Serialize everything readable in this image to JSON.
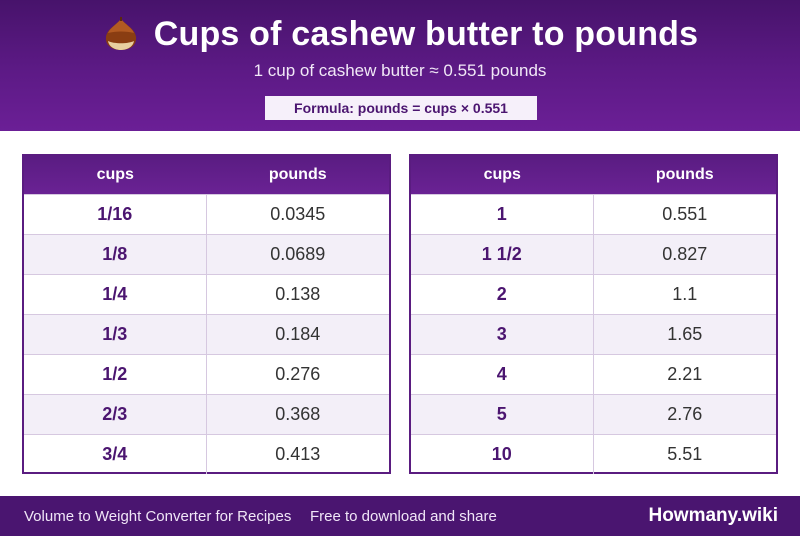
{
  "header": {
    "title": "Cups of cashew butter to pounds",
    "title_icon": "chestnut-icon",
    "subtitle": "1 cup of cashew butter ≈ 0.551 pounds",
    "formula": "Formula: pounds = cups × 0.551"
  },
  "tables": [
    {
      "col_cups": "cups",
      "col_pounds": "pounds",
      "rows": [
        {
          "cups": "1/16",
          "pounds": "0.0345"
        },
        {
          "cups": "1/8",
          "pounds": "0.0689"
        },
        {
          "cups": "1/4",
          "pounds": "0.138"
        },
        {
          "cups": "1/3",
          "pounds": "0.184"
        },
        {
          "cups": "1/2",
          "pounds": "0.276"
        },
        {
          "cups": "2/3",
          "pounds": "0.368"
        },
        {
          "cups": "3/4",
          "pounds": "0.413"
        }
      ]
    },
    {
      "col_cups": "cups",
      "col_pounds": "pounds",
      "rows": [
        {
          "cups": "1",
          "pounds": "0.551"
        },
        {
          "cups": "1 1/2",
          "pounds": "0.827"
        },
        {
          "cups": "2",
          "pounds": "1.1"
        },
        {
          "cups": "3",
          "pounds": "1.65"
        },
        {
          "cups": "4",
          "pounds": "2.21"
        },
        {
          "cups": "5",
          "pounds": "2.76"
        },
        {
          "cups": "10",
          "pounds": "5.51"
        }
      ]
    }
  ],
  "footer": {
    "left": "Volume to Weight Converter for Recipes",
    "middle": "Free to download and share",
    "brand": "Howmany.wiki"
  },
  "colors": {
    "header_purple": "#5d1a86",
    "footer_purple": "#4a1570",
    "cups_text": "#4b1570"
  }
}
